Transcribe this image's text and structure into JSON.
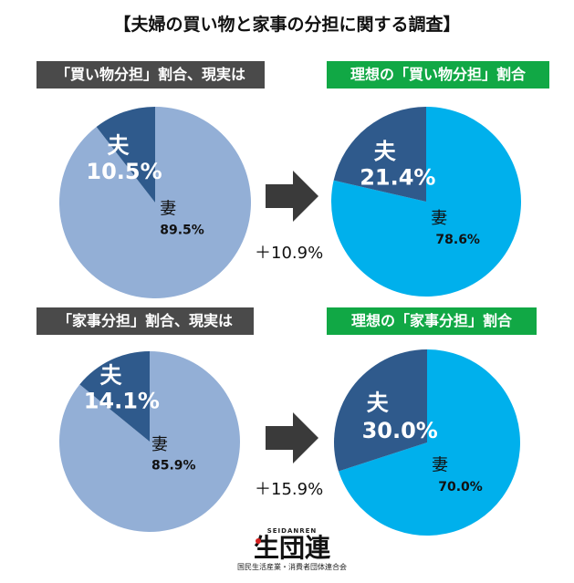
{
  "title": "【夫婦の買い物と家事の分担に関する調査】",
  "colors": {
    "reality_wife": "#93afd6",
    "reality_husband": "#2f5a8c",
    "ideal_wife": "#00b0ec",
    "ideal_husband": "#2f5a8c",
    "reality_label_bg": "#4a4a4a",
    "ideal_label_bg": "#11a845"
  },
  "chart_data": [
    {
      "type": "pie",
      "title": "「買い物分担」割合、現実は",
      "slices": [
        {
          "label": "夫",
          "value": 10.5,
          "display": "10.5%"
        },
        {
          "label": "妻",
          "value": 89.5,
          "display": "89.5%"
        }
      ]
    },
    {
      "type": "pie",
      "title": "理想の「買い物分担」割合",
      "slices": [
        {
          "label": "夫",
          "value": 21.4,
          "display": "21.4%"
        },
        {
          "label": "妻",
          "value": 78.6,
          "display": "78.6%"
        }
      ]
    },
    {
      "type": "pie",
      "title": "「家事分担」割合、現実は",
      "slices": [
        {
          "label": "夫",
          "value": 14.1,
          "display": "14.1%"
        },
        {
          "label": "妻",
          "value": 85.9,
          "display": "85.9%"
        }
      ]
    },
    {
      "type": "pie",
      "title": "理想の「家事分担」割合",
      "slices": [
        {
          "label": "夫",
          "value": 30.0,
          "display": "30.0%"
        },
        {
          "label": "妻",
          "value": 70.0,
          "display": "70.0%"
        }
      ]
    }
  ],
  "differences": {
    "shopping": "＋10.9%",
    "housework": "＋15.9%"
  },
  "logo": {
    "small": "SEIDANREN",
    "main": "生団連",
    "sub": "国民生活産業・消費者団体連合会"
  }
}
